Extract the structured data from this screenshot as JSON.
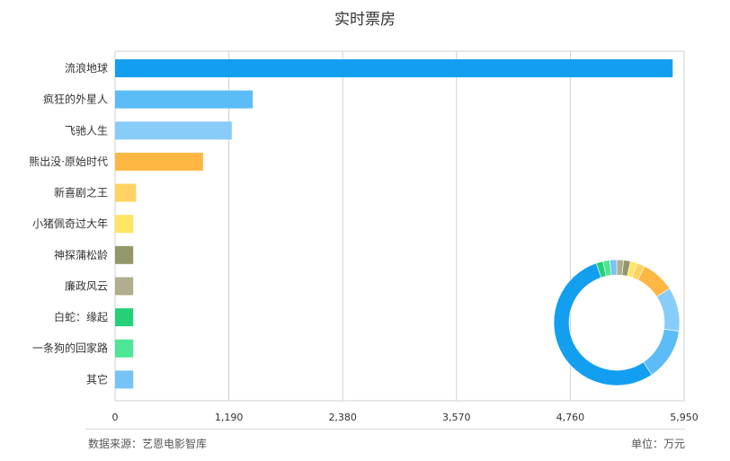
{
  "chart_data": {
    "type": "bar",
    "orientation": "horizontal",
    "title": "实时票房",
    "categories": [
      "流浪地球",
      "疯狂的外星人",
      "飞驰人生",
      "熊出没·原始时代",
      "新喜剧之王",
      "小猪佩奇过大年",
      "神探蒲松龄",
      "廉政风云",
      "白蛇：缘起",
      "一条狗的回家路",
      "其它"
    ],
    "values": [
      5830,
      1440,
      1220,
      920,
      220,
      190,
      190,
      190,
      190,
      190,
      190
    ],
    "colors": [
      "#139ff0",
      "#5cbcf7",
      "#88ccf9",
      "#ffb744",
      "#ffd363",
      "#ffe562",
      "#94976a",
      "#b1ad8e",
      "#24d177",
      "#4ee596",
      "#77c3f6"
    ],
    "xlim": [
      0,
      5950
    ],
    "xticks": [
      "0",
      "1,190",
      "2,380",
      "3,570",
      "4,760",
      "5,950"
    ],
    "xtick_values": [
      0,
      1190,
      2380,
      3570,
      4760,
      5950
    ],
    "grid": true,
    "donut": {
      "type": "pie",
      "style": "donut",
      "values": [
        5830,
        1440,
        1220,
        920,
        220,
        190,
        190,
        190,
        190,
        190,
        190
      ],
      "colors": [
        "#139ff0",
        "#5cbcf7",
        "#88ccf9",
        "#ffb744",
        "#ffd363",
        "#ffe562",
        "#94976a",
        "#b1ad8e",
        "#24d177",
        "#4ee596",
        "#77c3f6"
      ]
    }
  },
  "footer": {
    "source": "数据来源：艺恩电影智库",
    "unit": "单位：万元"
  }
}
